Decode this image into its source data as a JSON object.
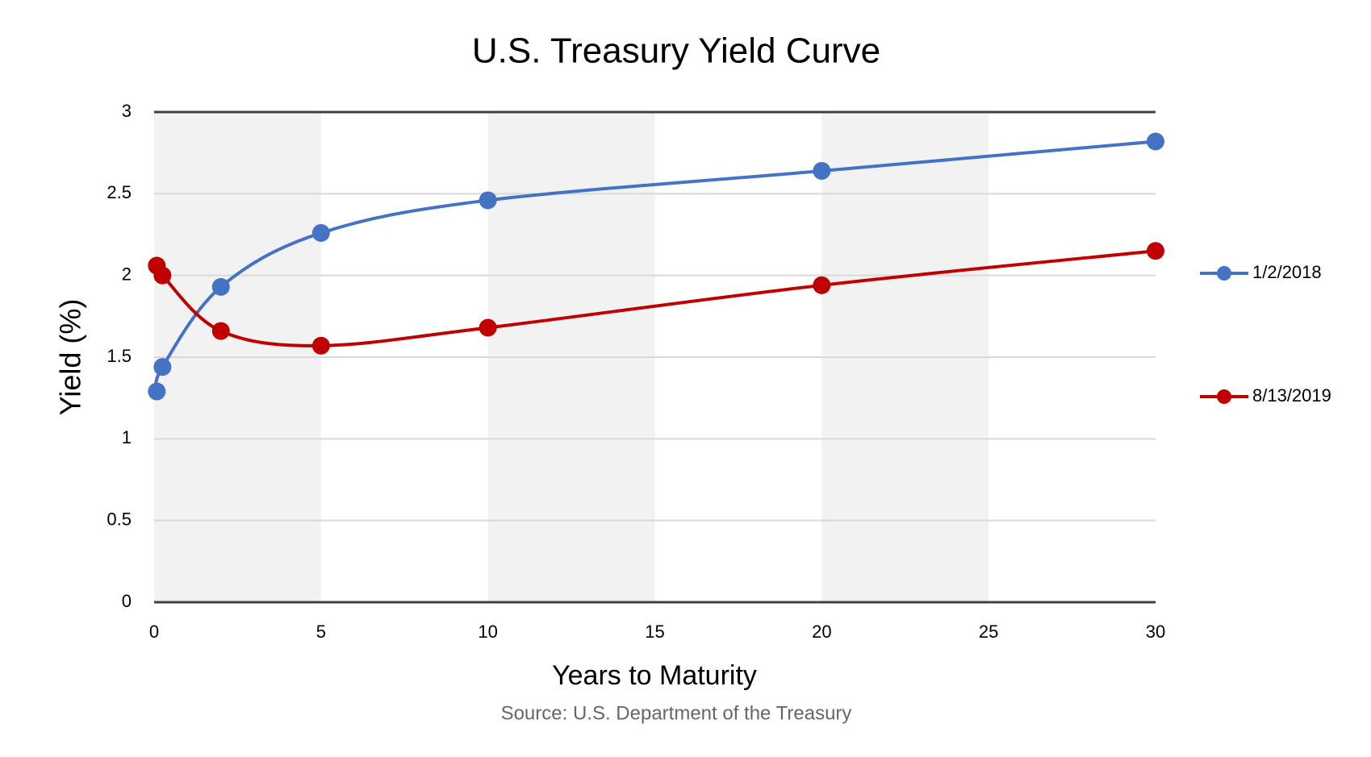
{
  "chart_data": {
    "type": "line",
    "title": "U.S. Treasury Yield Curve",
    "x_label": "Years to Maturity",
    "y_label": "Yield (%)",
    "source": "Source: U.S. Department of the Treasury",
    "x": [
      0.08,
      0.25,
      2,
      5,
      10,
      20,
      30
    ],
    "series": [
      {
        "name": "1/2/2018",
        "color": "#4472c4",
        "values": [
          1.29,
          1.44,
          1.93,
          2.26,
          2.46,
          2.64,
          2.82
        ]
      },
      {
        "name": "8/13/2019",
        "color": "#c00000",
        "values": [
          2.06,
          2.0,
          1.66,
          1.57,
          1.68,
          1.94,
          2.15
        ]
      }
    ],
    "xlim": [
      0,
      30
    ],
    "xticks": [
      0,
      5,
      10,
      15,
      20,
      25,
      30
    ],
    "ylim": [
      0,
      3
    ],
    "yticks": [
      0,
      0.5,
      1,
      1.5,
      2,
      2.5,
      3
    ],
    "grid": true,
    "legend": "right"
  }
}
